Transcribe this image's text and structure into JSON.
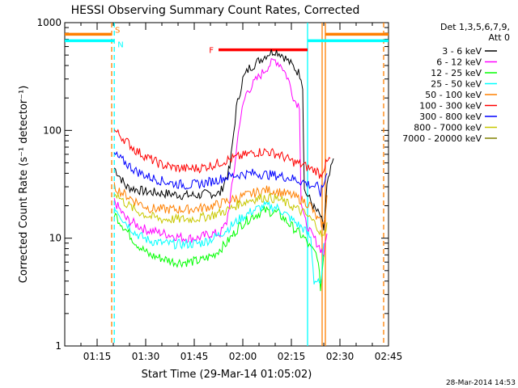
{
  "chart_data": {
    "type": "line",
    "title": "HESSI Observing Summary Count Rates, Corrected",
    "xlabel": "Start Time (29-Mar-14 01:05:02)",
    "ylabel": "Corrected Count Rate (s⁻¹ detector⁻¹)",
    "yscale": "log",
    "ylim": [
      1,
      1000
    ],
    "xlim_minutes": [
      65,
      165
    ],
    "x_ticks": [
      {
        "t": 75,
        "label": "01:15"
      },
      {
        "t": 90,
        "label": "01:30"
      },
      {
        "t": 105,
        "label": "01:45"
      },
      {
        "t": 120,
        "label": "02:00"
      },
      {
        "t": 135,
        "label": "02:15"
      },
      {
        "t": 150,
        "label": "02:30"
      },
      {
        "t": 165,
        "label": "02:45"
      }
    ],
    "y_ticks": [
      {
        "v": 1,
        "label": "1"
      },
      {
        "v": 10,
        "label": "10"
      },
      {
        "v": 100,
        "label": "100"
      },
      {
        "v": 1000,
        "label": "1000"
      }
    ],
    "legend_header": [
      "Det 1,3,5,6,7,9,",
      "Att 0"
    ],
    "series": [
      {
        "name": "3 - 6 keV",
        "color": "#000000",
        "x": [
          80.3,
          84,
          90,
          96,
          102,
          106,
          110,
          113,
          116,
          118,
          120,
          122,
          124,
          126,
          128,
          130,
          132,
          134,
          136,
          138,
          138.5,
          139,
          141,
          142,
          144,
          145,
          146,
          148
        ],
        "y": [
          45,
          30,
          27,
          26,
          25,
          25,
          26,
          26,
          45,
          160,
          300,
          380,
          420,
          470,
          520,
          550,
          510,
          440,
          380,
          320,
          250,
          28,
          22,
          19,
          16,
          12,
          30,
          55
        ]
      },
      {
        "name": "6 - 12 keV",
        "color": "#ff00ff",
        "x": [
          80.3,
          84,
          90,
          96,
          102,
          106,
          110,
          113,
          115,
          117,
          119,
          121,
          124,
          126,
          128,
          130,
          132,
          134,
          136,
          137.5,
          138,
          139,
          141,
          142,
          144,
          145,
          146
        ],
        "y": [
          22,
          15,
          12,
          11,
          10,
          10,
          11,
          11,
          14,
          35,
          120,
          220,
          290,
          340,
          400,
          450,
          400,
          300,
          190,
          170,
          22,
          15,
          11,
          10,
          8,
          7,
          11
        ]
      },
      {
        "name": "12 - 25 keV",
        "color": "#00ff00",
        "x": [
          80.3,
          83,
          87,
          91,
          95,
          99,
          103,
          107,
          111,
          115,
          119,
          123,
          127,
          131,
          135,
          139,
          141,
          143,
          144,
          145
        ],
        "y": [
          17,
          13,
          9,
          7,
          6.5,
          6,
          6,
          6.2,
          7,
          9,
          13,
          16,
          18,
          17,
          13,
          10,
          8,
          7,
          3.5,
          7
        ]
      },
      {
        "name": "25 - 50 keV",
        "color": "#00ffff",
        "x": [
          80.3,
          83,
          87,
          91,
          95,
          99,
          103,
          107,
          111,
          115,
          119,
          123,
          127,
          131,
          135,
          139,
          141,
          142,
          143,
          144,
          145
        ],
        "y": [
          20,
          15,
          11,
          9.5,
          9,
          8.8,
          8.8,
          9,
          10,
          12,
          15,
          18,
          20,
          19,
          15,
          12,
          10,
          4,
          4,
          3.5,
          9
        ]
      },
      {
        "name": "50 - 100 keV",
        "color": "#ff8000",
        "x": [
          80.3,
          83,
          87,
          91,
          95,
          99,
          103,
          107,
          111,
          115,
          119,
          123,
          127,
          131,
          135,
          139,
          141,
          142,
          143,
          144,
          145,
          146
        ],
        "y": [
          30,
          26,
          22,
          19,
          18.5,
          18.5,
          18.5,
          19,
          20,
          22,
          24,
          26,
          28,
          27,
          25,
          22,
          20,
          17,
          15,
          14,
          13,
          25
        ]
      },
      {
        "name": "100 - 300 keV",
        "color": "#ff0000",
        "x": [
          80.3,
          83,
          87,
          91,
          95,
          99,
          103,
          107,
          111,
          115,
          119,
          123,
          127,
          131,
          135,
          139,
          141,
          143,
          144,
          145,
          146,
          147
        ],
        "y": [
          100,
          85,
          65,
          55,
          48,
          45,
          44,
          45,
          48,
          53,
          57,
          62,
          64,
          60,
          52,
          47,
          44,
          42,
          38,
          45,
          50,
          55
        ]
      },
      {
        "name": "300 - 800 keV",
        "color": "#0000ff",
        "x": [
          80.3,
          83,
          87,
          91,
          95,
          99,
          103,
          107,
          111,
          115,
          119,
          123,
          127,
          131,
          135,
          139,
          141,
          143,
          144,
          145,
          146
        ],
        "y": [
          60,
          52,
          42,
          37,
          34,
          32,
          31,
          32,
          34,
          37,
          39,
          40,
          39,
          38,
          36,
          33,
          31,
          30,
          26,
          32,
          40
        ]
      },
      {
        "name": "800 - 7000 keV",
        "color": "#c8c800",
        "x": [
          80.3,
          83,
          87,
          91,
          95,
          99,
          103,
          107,
          111,
          115,
          119,
          123,
          127,
          131,
          135,
          139,
          141,
          143,
          144,
          145,
          146
        ],
        "y": [
          27,
          22,
          18,
          16,
          15,
          15,
          15,
          15.5,
          16.5,
          18,
          21,
          23,
          24,
          23,
          20,
          17,
          15,
          13,
          11,
          10,
          14
        ]
      },
      {
        "name": "7000 - 20000 keV",
        "color": "#808000",
        "x": [],
        "y": []
      }
    ],
    "time_intervals": [
      {
        "label": "S",
        "color": "#ff8000",
        "t0": 65,
        "t1": 79.5,
        "y": 780
      },
      {
        "label": "N",
        "color": "#00ffff",
        "t0": 65,
        "t1": 80.3,
        "y": 680
      },
      {
        "label": "F",
        "color": "#ff0000",
        "t0": 112.5,
        "t1": 140,
        "y": 560
      }
    ],
    "right_bars": [
      {
        "color": "#00ffff",
        "t0": 140,
        "t1": 165,
        "y": 680
      },
      {
        "color": "#ff8000",
        "t0": 145.5,
        "t1": 165,
        "y": 780
      }
    ],
    "vertical_lines": [
      {
        "t": 79.5,
        "color": "#ff8000",
        "dashed": true
      },
      {
        "t": 80.3,
        "color": "#00ffff",
        "dashed": true
      },
      {
        "t": 140,
        "color": "#00ffff",
        "dashed": false
      },
      {
        "t": 144.5,
        "color": "#ff8000",
        "dashed": false
      },
      {
        "t": 145.5,
        "color": "#ff8000",
        "dashed": false
      },
      {
        "t": 163.5,
        "color": "#ff8000",
        "dashed": true
      }
    ]
  },
  "footer": {
    "date": "28-Mar-2014 14:53"
  }
}
